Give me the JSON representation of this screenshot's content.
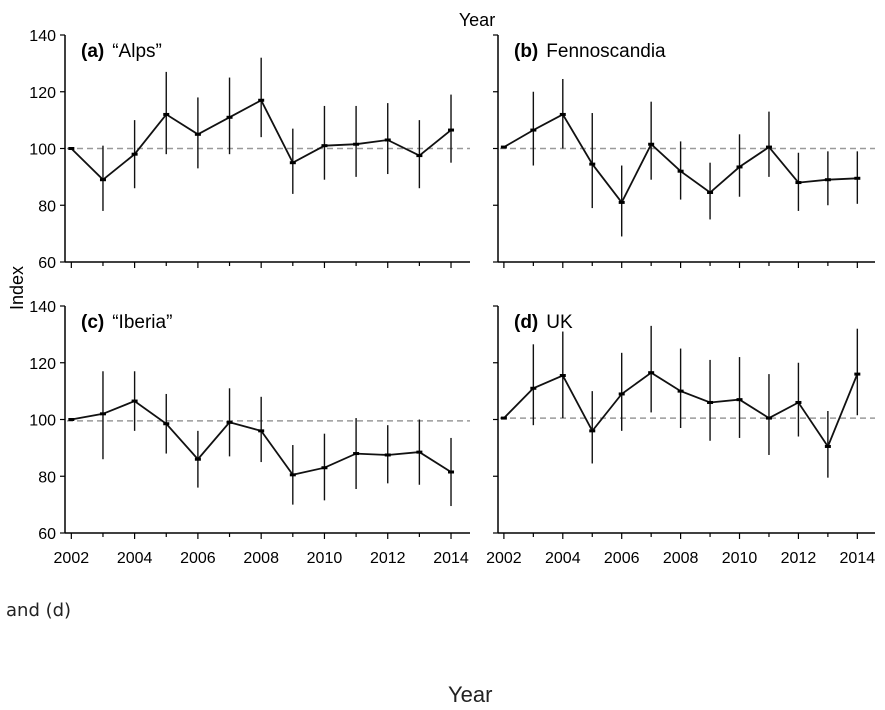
{
  "figure": {
    "top_label": "Year",
    "ylabel": "Index",
    "caption_fragment": "and (d)",
    "bottom_xlabel": "Year"
  },
  "chart_data": [
    {
      "type": "line",
      "panel_label": "(a)",
      "title": "“Alps”",
      "x": [
        2002,
        2003,
        2004,
        2005,
        2006,
        2007,
        2008,
        2009,
        2010,
        2011,
        2012,
        2013,
        2014
      ],
      "y": [
        100,
        89,
        98,
        112,
        105,
        111,
        117,
        95,
        101,
        101.5,
        103,
        97.5,
        106.5
      ],
      "err_low": [
        100,
        78,
        86,
        98,
        93,
        98,
        104,
        84,
        89,
        90,
        91,
        86,
        95
      ],
      "err_high": [
        100,
        101,
        110,
        127,
        118,
        125,
        132,
        107,
        115,
        115,
        116,
        110,
        119
      ],
      "reference_line": 100,
      "xlim": [
        2001.8,
        2014.6
      ],
      "ylim": [
        60,
        140
      ],
      "yticks": [
        "60",
        "80",
        "100",
        "120",
        "140"
      ],
      "xticks": [],
      "show_yticks": true,
      "show_xticks": false
    },
    {
      "type": "line",
      "panel_label": "(b)",
      "title": "Fennoscandia",
      "x": [
        2002,
        2003,
        2004,
        2005,
        2006,
        2007,
        2008,
        2009,
        2010,
        2011,
        2012,
        2013,
        2014
      ],
      "y": [
        100.5,
        106.5,
        112,
        94.5,
        81,
        101.5,
        92,
        84.5,
        93.5,
        100.5,
        88,
        89,
        89.5
      ],
      "err_low": [
        100.5,
        94,
        100,
        79,
        69,
        89,
        82,
        75,
        83,
        90,
        78,
        80,
        80.5
      ],
      "err_high": [
        100.5,
        120,
        124.5,
        112.5,
        94,
        116.5,
        102.5,
        95,
        105,
        113,
        98.5,
        99,
        99
      ],
      "reference_line": 100,
      "xlim": [
        2001.8,
        2014.6
      ],
      "ylim": [
        60,
        140
      ],
      "yticks": [],
      "xticks": [],
      "show_yticks": false,
      "show_xticks": false
    },
    {
      "type": "line",
      "panel_label": "(c)",
      "title": "“Iberia”",
      "x": [
        2002,
        2003,
        2004,
        2005,
        2006,
        2007,
        2008,
        2009,
        2010,
        2011,
        2012,
        2013,
        2014
      ],
      "y": [
        100,
        102,
        106.5,
        98.5,
        86,
        99,
        96,
        80.5,
        83,
        88,
        87.5,
        88.5,
        81.5
      ],
      "err_low": [
        100,
        86,
        96,
        88,
        76,
        87,
        85,
        70,
        71.5,
        75.5,
        77.5,
        77,
        69.5
      ],
      "err_high": [
        100,
        117,
        117,
        109,
        96,
        111,
        108,
        91,
        95,
        100.5,
        98,
        100,
        93.5
      ],
      "reference_line": 99.5,
      "xlim": [
        2001.8,
        2014.6
      ],
      "ylim": [
        60,
        140
      ],
      "yticks": [
        "60",
        "80",
        "100",
        "120",
        "140"
      ],
      "xticks": [
        "2002",
        "2004",
        "2006",
        "2008",
        "2010",
        "2012",
        "2014"
      ],
      "show_yticks": true,
      "show_xticks": true
    },
    {
      "type": "line",
      "panel_label": "(d)",
      "title": "UK",
      "x": [
        2002,
        2003,
        2004,
        2005,
        2006,
        2007,
        2008,
        2009,
        2010,
        2011,
        2012,
        2013,
        2014
      ],
      "y": [
        100.5,
        111,
        115.5,
        96,
        109,
        116.5,
        110,
        106,
        107,
        100.5,
        106,
        90.5,
        116
      ],
      "err_low": [
        100.5,
        98,
        100.5,
        84.5,
        96,
        102.5,
        97,
        92.5,
        93.5,
        87.5,
        94,
        79.5,
        101.5
      ],
      "err_high": [
        100.5,
        126.5,
        131,
        110,
        123.5,
        133,
        125,
        121,
        122,
        116,
        120,
        103,
        132
      ],
      "reference_line": 100.5,
      "xlim": [
        2001.8,
        2014.6
      ],
      "ylim": [
        60,
        140
      ],
      "yticks": [],
      "xticks": [
        "2002",
        "2004",
        "2006",
        "2008",
        "2010",
        "2012",
        "2014"
      ],
      "show_yticks": false,
      "show_xticks": true
    }
  ]
}
